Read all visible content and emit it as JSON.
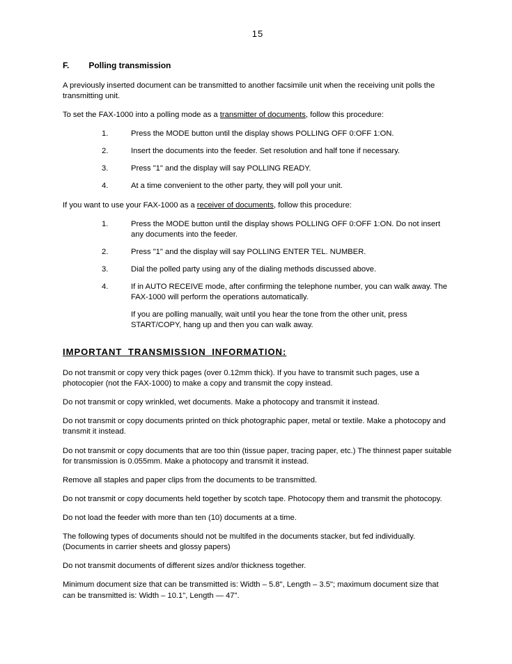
{
  "page_number": "15",
  "section": {
    "letter": "F.",
    "title": "Polling transmission"
  },
  "intro": "A previously inserted document can be transmitted to another facsimile unit when the receiving unit polls the transmitting unit.",
  "set_line_pre": "To set the FAX-1000 into a polling mode as a ",
  "set_line_u": "transmitter of documents",
  "set_line_post": ", follow this procedure:",
  "tx_steps": [
    {
      "n": "1.",
      "t": "Press the MODE button until the display shows POLLING OFF  0:OFF  1:ON."
    },
    {
      "n": "2.",
      "t": "Insert the documents into the feeder.  Set resolution and half tone if necessary."
    },
    {
      "n": "3.",
      "t": "Press \"1\" and the display will say POLLING READY."
    },
    {
      "n": "4.",
      "t": "At a time convenient to the other party, they will poll your unit."
    }
  ],
  "rx_line_pre": "If you want to use your FAX-1000 as a ",
  "rx_line_u": "receiver of documents",
  "rx_line_post": ", follow this procedure:",
  "rx_steps": [
    {
      "n": "1.",
      "t": "Press the MODE button until the display shows POLLING OFF  0:OFF  1:ON. Do not insert any documents into the feeder."
    },
    {
      "n": "2.",
      "t": "Press \"1\" and the display will say POLLING   ENTER TEL. NUMBER."
    },
    {
      "n": "3.",
      "t": "Dial the polled party using any of the dialing methods discussed above."
    },
    {
      "n": "4.",
      "t": "If in AUTO RECEIVE mode, after confirming the telephone number, you can walk away.  The FAX-1000 will perform the operations automatically."
    }
  ],
  "rx_cont": "If you are polling manually, wait until you hear the tone from the other unit, press START/COPY, hang up and then you can walk away.",
  "important_heading": "IMPORTANT  TRANSMISSION  INFORMATION:",
  "imp": [
    "Do not transmit or copy very thick pages (over 0.12mm thick).  If you have to transmit such pages, use a photocopier (not the FAX-1000) to make a copy and transmit the copy instead.",
    "Do not transmit or copy wrinkled, wet documents.  Make a photocopy and transmit it instead.",
    "Do not transmit or copy documents printed on thick photographic paper, metal or textile.  Make a photocopy and transmit it instead.",
    "Do not transmit or copy documents that are too thin (tissue paper, tracing paper, etc.)  The thinnest paper suitable for transmission is 0.055mm.  Make a photocopy and transmit it instead.",
    "Remove all staples and paper clips from the documents to be transmitted.",
    "Do not transmit or copy documents held together by scotch tape.  Photocopy them and transmit the photocopy.",
    "Do not load the feeder with more than ten (10) documents at a time.",
    "The following types of documents should not be multifed in the documents stacker, but fed individually. (Documents in carrier sheets and glossy papers)",
    "Do not transmit documents of different sizes and/or thickness together.",
    "Minimum document size that can be transmitted is:  Width – 5.8\", Length – 3.5\"; maximum document size that can be transmitted is:  Width – 10.1\", Length  — 47\"."
  ]
}
